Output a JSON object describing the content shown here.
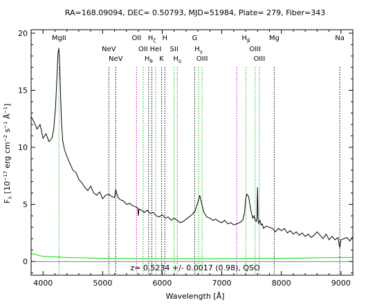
{
  "chart_data": {
    "type": "line",
    "title": "RA=168.09094, DEC= 0.50793, MJD=51984, Plate= 279, Fiber=343",
    "xlabel": {
      "main": "Wavelength [",
      "unit": "Å",
      "close": "]"
    },
    "ylabel": {
      "f": "F",
      "sub_lambda": "λ",
      "bracket": " [10",
      "sup1": "−17",
      "erg": " erg cm",
      "sup2": "−2",
      "s": " s",
      "sup3": "−1",
      "ang": " Å",
      "sup4": "−1",
      "close": "]"
    },
    "xlim": [
      3800,
      9200
    ],
    "ylim": [
      -1.2,
      20.3
    ],
    "x_ticks": [
      4000,
      5000,
      6000,
      7000,
      8000,
      9000
    ],
    "y_ticks": [
      0,
      5,
      10,
      15,
      20
    ],
    "redshift_label": "z= 0.5234 +/- 0.0017 (0.98), QSO",
    "colors": {
      "spectrum": "#000000",
      "error": "#00e000",
      "emission": "#00c000",
      "absorption": "#000000",
      "sky": "#cc00cc"
    },
    "series": [
      {
        "role": "flux",
        "x": [
          3800,
          3850,
          3900,
          3950,
          4000,
          4050,
          4100,
          4150,
          4180,
          4210,
          4230,
          4250,
          4265,
          4280,
          4295,
          4310,
          4330,
          4360,
          4400,
          4450,
          4500,
          4550,
          4600,
          4650,
          4700,
          4750,
          4800,
          4850,
          4900,
          4950,
          5000,
          5050,
          5100,
          5150,
          5200,
          5220,
          5240,
          5260,
          5300,
          5350,
          5400,
          5450,
          5500,
          5550,
          5590,
          5600,
          5610,
          5650,
          5700,
          5750,
          5800,
          5850,
          5900,
          5950,
          6000,
          6050,
          6100,
          6150,
          6200,
          6250,
          6300,
          6350,
          6400,
          6450,
          6500,
          6550,
          6600,
          6630,
          6660,
          6700,
          6750,
          6800,
          6850,
          6900,
          6950,
          7000,
          7050,
          7100,
          7150,
          7200,
          7250,
          7300,
          7350,
          7380,
          7400,
          7420,
          7450,
          7480,
          7500,
          7520,
          7540,
          7560,
          7580,
          7590,
          7600,
          7610,
          7620,
          7640,
          7660,
          7680,
          7700,
          7750,
          7800,
          7850,
          7900,
          7950,
          8000,
          8050,
          8100,
          8150,
          8200,
          8250,
          8300,
          8350,
          8400,
          8450,
          8500,
          8550,
          8600,
          8650,
          8700,
          8750,
          8800,
          8850,
          8900,
          8950,
          8980,
          9000,
          9050,
          9100,
          9150,
          9200
        ],
        "y": [
          12.7,
          12.2,
          11.6,
          12.0,
          10.8,
          11.2,
          10.5,
          10.8,
          11.6,
          13.5,
          15.8,
          18.2,
          18.7,
          17.3,
          14.5,
          12.2,
          10.6,
          9.8,
          9.2,
          8.6,
          8.0,
          7.8,
          7.2,
          6.9,
          6.5,
          6.2,
          6.6,
          6.0,
          5.8,
          6.1,
          5.5,
          5.8,
          5.9,
          5.7,
          5.6,
          6.3,
          5.9,
          5.6,
          5.4,
          5.3,
          5.0,
          5.1,
          4.9,
          4.8,
          4.7,
          4.0,
          4.6,
          4.5,
          4.3,
          4.5,
          4.2,
          4.3,
          4.0,
          3.9,
          4.1,
          3.8,
          3.9,
          3.6,
          3.8,
          3.6,
          3.4,
          3.5,
          3.7,
          3.9,
          4.1,
          4.4,
          5.2,
          5.8,
          5.1,
          4.3,
          3.9,
          3.8,
          3.6,
          3.7,
          3.5,
          3.4,
          3.6,
          3.3,
          3.4,
          3.2,
          3.3,
          3.4,
          3.6,
          4.2,
          5.4,
          5.9,
          5.7,
          4.7,
          4.2,
          3.8,
          4.0,
          3.6,
          3.5,
          3.8,
          6.5,
          3.6,
          3.3,
          3.6,
          3.2,
          3.3,
          2.9,
          3.1,
          3.0,
          2.9,
          2.6,
          2.9,
          2.7,
          2.9,
          2.5,
          2.7,
          2.4,
          2.6,
          2.3,
          2.5,
          2.2,
          2.4,
          2.1,
          2.3,
          2.6,
          2.3,
          2.0,
          2.4,
          1.9,
          2.2,
          1.9,
          2.1,
          1.2,
          1.9,
          2.0,
          2.1,
          1.8,
          2.2
        ]
      },
      {
        "role": "error",
        "x": [
          3800,
          4000,
          4200,
          4400,
          4600,
          4800,
          5000,
          5200,
          5400,
          5600,
          5800,
          6000,
          6200,
          6400,
          6600,
          6800,
          7000,
          7200,
          7400,
          7600,
          7800,
          8000,
          8200,
          8400,
          8600,
          8800,
          9000,
          9200
        ],
        "y": [
          0.7,
          0.45,
          0.4,
          0.35,
          0.32,
          0.3,
          0.28,
          0.27,
          0.26,
          0.25,
          0.25,
          0.24,
          0.24,
          0.24,
          0.25,
          0.24,
          0.24,
          0.25,
          0.26,
          0.27,
          0.27,
          0.28,
          0.29,
          0.3,
          0.32,
          0.33,
          0.35,
          0.36
        ]
      }
    ],
    "spectral_lines": [
      {
        "label": "MgII",
        "x": 4268,
        "kind": "emission",
        "row": 0
      },
      {
        "label": "NeV",
        "x": 5105,
        "kind": "absorption",
        "row": 1
      },
      {
        "label": "NeV",
        "x": 5220,
        "kind": "absorption",
        "row": 2
      },
      {
        "label": "OII",
        "x": 5569,
        "kind": "sky",
        "row": 0
      },
      {
        "label": "OII",
        "x": 5680,
        "kind": "emission",
        "row": 1
      },
      {
        "label": "H",
        "sub": "θ",
        "x": 5772,
        "kind": "absorption",
        "row": 2
      },
      {
        "label": "H",
        "sub": "ζ",
        "x": 5826,
        "kind": "absorption",
        "row": 0
      },
      {
        "label": "HeI",
        "x": 5890,
        "kind": "emission",
        "row": 1
      },
      {
        "label": "K",
        "x": 5990,
        "kind": "absorption",
        "row": 2
      },
      {
        "label": "H",
        "x": 6045,
        "kind": "absorption",
        "row": 0
      },
      {
        "label": "SII",
        "x": 6200,
        "kind": "emission",
        "row": 1
      },
      {
        "label": "H",
        "sub": "δ",
        "x": 6253,
        "kind": "sky",
        "row": 2
      },
      {
        "label": "G",
        "x": 6545,
        "kind": "absorption",
        "row": 0
      },
      {
        "label": "H",
        "sub": "γ",
        "x": 6610,
        "kind": "emission",
        "row": 1
      },
      {
        "label": "OIII",
        "x": 6670,
        "kind": "emission",
        "row": 2
      },
      {
        "label": "H",
        "sub": "β",
        "x": 7405,
        "kind": "emission",
        "row": 0
      },
      {
        "label": "OIII",
        "x": 7560,
        "kind": "emission",
        "row": 1
      },
      {
        "label": "OIII",
        "x": 7630,
        "kind": "emission",
        "row": 2
      },
      {
        "label": "Mg",
        "x": 7880,
        "kind": "absorption",
        "row": 0
      },
      {
        "label": "Na",
        "x": 8980,
        "kind": "absorption",
        "row": 0
      }
    ],
    "extra_sky_lines": [
      7250
    ]
  }
}
